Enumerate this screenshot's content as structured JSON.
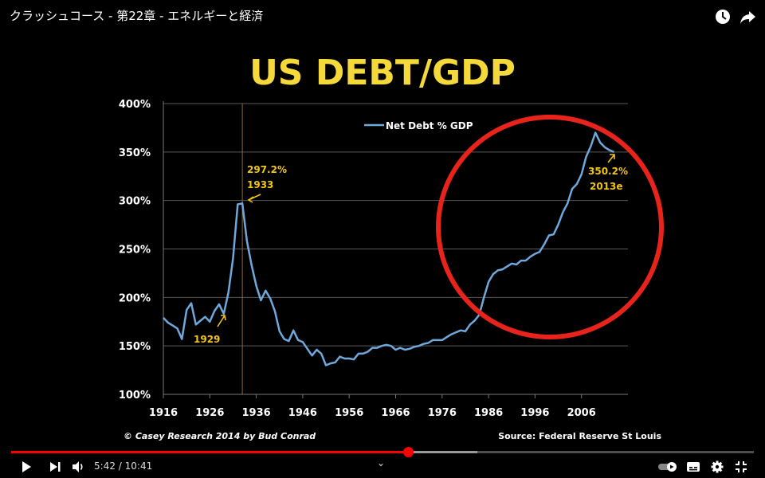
{
  "video": {
    "title": "クラッシュコース - 第22章 - エネルギーと経済",
    "current_time": "5:42",
    "duration": "10:41",
    "time_separator": " / ",
    "played_fraction": 0.534,
    "buffered_fraction": 0.628
  },
  "icons": {
    "watch_later": "clock-icon",
    "share": "share-arrow-icon",
    "play": "play-icon",
    "next": "skip-next-icon",
    "volume": "volume-icon",
    "autoplay": "autoplay-toggle-icon",
    "captions": "captions-icon",
    "settings": "gear-icon",
    "fullscreen": "exit-fullscreen-icon",
    "chevron": "chevron-down-icon"
  },
  "colors": {
    "title_yellow": "#f5d93a",
    "line_blue": "#6fa8dc",
    "annotation_yellow": "#f0c419",
    "circle_red": "#e8231c",
    "progress_red": "#ff0000"
  },
  "chart_data": {
    "type": "line",
    "title": "US DEBT/GDP",
    "legend": "Net Debt % GDP",
    "legend_position": "top-center",
    "grid": true,
    "xlim": [
      1916,
      2016
    ],
    "ylim": [
      100,
      400
    ],
    "x_ticks": [
      "1916",
      "1926",
      "1936",
      "1946",
      "1956",
      "1966",
      "1976",
      "1986",
      "1996",
      "2006"
    ],
    "y_ticks": [
      "100%",
      "150%",
      "200%",
      "250%",
      "300%",
      "350%",
      "400%"
    ],
    "series": [
      {
        "name": "Net Debt % GDP",
        "x": [
          1916,
          1917,
          1918,
          1919,
          1920,
          1921,
          1922,
          1923,
          1924,
          1925,
          1926,
          1927,
          1928,
          1929,
          1930,
          1931,
          1932,
          1933,
          1934,
          1935,
          1936,
          1937,
          1938,
          1939,
          1940,
          1941,
          1942,
          1943,
          1944,
          1945,
          1946,
          1947,
          1948,
          1949,
          1950,
          1951,
          1952,
          1953,
          1954,
          1955,
          1956,
          1957,
          1958,
          1959,
          1960,
          1961,
          1962,
          1963,
          1964,
          1965,
          1966,
          1967,
          1968,
          1969,
          1970,
          1971,
          1972,
          1973,
          1974,
          1975,
          1976,
          1977,
          1978,
          1979,
          1980,
          1981,
          1982,
          1983,
          1984,
          1985,
          1986,
          1987,
          1988,
          1989,
          1990,
          1991,
          1992,
          1993,
          1994,
          1995,
          1996,
          1997,
          1998,
          1999,
          2000,
          2001,
          2002,
          2003,
          2004,
          2005,
          2006,
          2007,
          2008,
          2009,
          2010,
          2011,
          2012,
          2013
        ],
        "values": [
          179,
          174,
          171,
          168,
          157,
          187,
          194,
          172,
          176,
          180,
          175,
          186,
          193,
          183,
          205,
          240,
          296,
          297,
          258,
          233,
          212,
          197,
          207,
          199,
          186,
          165,
          157,
          155,
          166,
          156,
          154,
          147,
          140,
          146,
          142,
          130,
          132,
          133,
          139,
          137,
          137,
          136,
          142,
          142,
          144,
          148,
          148,
          150,
          151,
          150,
          146,
          148,
          146,
          147,
          149,
          150,
          152,
          153,
          156,
          156,
          156,
          159,
          162,
          164,
          166,
          165,
          172,
          176,
          182,
          200,
          216,
          224,
          228,
          229,
          232,
          235,
          234,
          238,
          238,
          242,
          245,
          247,
          255,
          264,
          265,
          275,
          288,
          297,
          312,
          317,
          327,
          345,
          356,
          370,
          360,
          355,
          352,
          350
        ]
      }
    ],
    "annotations": [
      {
        "label": "1929",
        "x": 1929,
        "y": 183
      },
      {
        "label": "297.2%",
        "label2": "1933",
        "x": 1933,
        "y": 297.2
      },
      {
        "label": "350.2%",
        "label2": "2013e",
        "x": 2013,
        "y": 350.2
      }
    ],
    "marker_year": 1933,
    "footer_left": "© Casey Research 2014 by Bud Conrad",
    "footer_right": "Source: Federal Reserve St Louis"
  }
}
